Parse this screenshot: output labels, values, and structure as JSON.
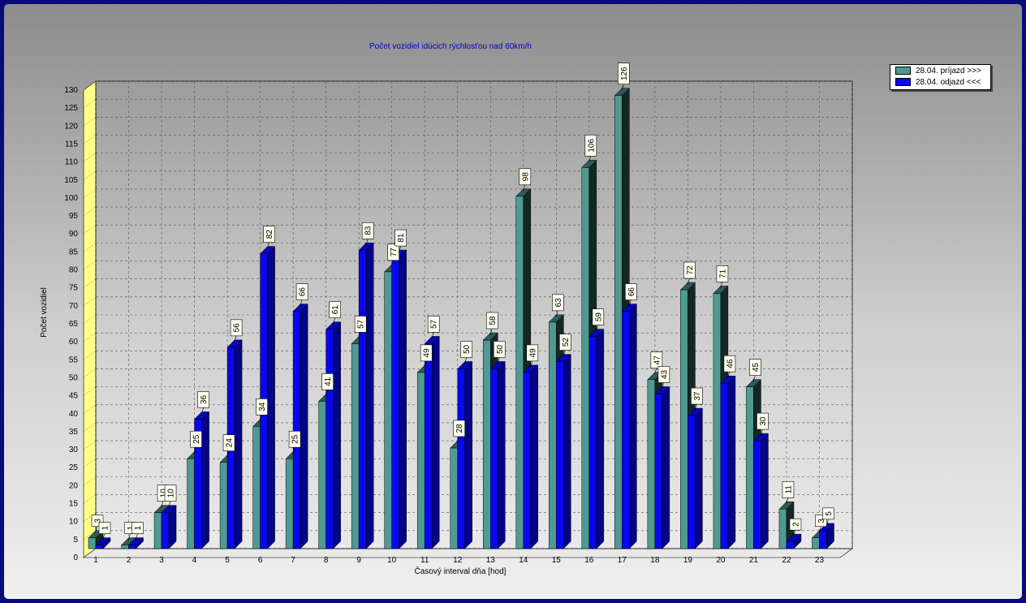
{
  "chart_data": {
    "type": "bar",
    "title": "Počet vozidiel idúcich rýchlosťou nad 60km/h",
    "xlabel": "Časový interval dňa [hod]",
    "ylabel": "Počet vozidiel",
    "ylim": [
      0,
      130
    ],
    "ytick_step": 5,
    "grid": true,
    "legend_position": "top-right",
    "categories": [
      "1",
      "2",
      "3",
      "4",
      "5",
      "6",
      "7",
      "8",
      "9",
      "10",
      "11",
      "12",
      "13",
      "14",
      "15",
      "16",
      "17",
      "18",
      "19",
      "20",
      "21",
      "22",
      "23"
    ],
    "series": [
      {
        "name": "28.04.  príjazd >>>",
        "color": "#4f9a92",
        "values": [
          3,
          1,
          10,
          25,
          24,
          34,
          25,
          41,
          57,
          77,
          49,
          28,
          58,
          98,
          63,
          106,
          126,
          47,
          72,
          71,
          45,
          11,
          3
        ]
      },
      {
        "name": "28.04.  odjazd <<<",
        "color": "#0808f0",
        "values": [
          1,
          1,
          10,
          36,
          56,
          82,
          66,
          61,
          83,
          81,
          57,
          50,
          50,
          49,
          52,
          59,
          66,
          43,
          37,
          46,
          30,
          2,
          5
        ]
      }
    ]
  }
}
